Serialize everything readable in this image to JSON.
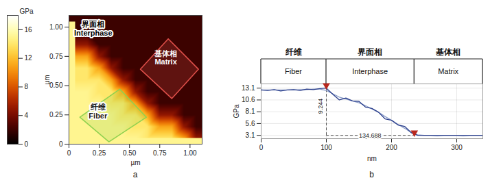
{
  "chart_data": [
    {
      "type": "heatmap",
      "panel": "a",
      "x": [
        0.05,
        0.15,
        0.25,
        0.35,
        0.45,
        0.55,
        0.65,
        0.75,
        0.85,
        0.95,
        1.05
      ],
      "y": [
        0.05,
        0.15,
        0.25,
        0.35,
        0.45,
        0.55,
        0.65,
        0.75,
        0.85,
        0.95,
        1.05
      ],
      "z": [
        [
          15,
          15,
          15,
          15,
          15,
          15,
          14,
          14,
          14,
          11,
          5
        ],
        [
          15,
          15,
          15,
          15,
          15,
          14,
          14,
          11,
          11,
          5,
          2
        ],
        [
          15,
          15,
          15,
          15,
          14,
          14,
          11,
          5,
          5,
          2,
          2
        ],
        [
          15,
          15,
          15,
          14,
          14,
          11,
          5,
          2,
          2,
          2,
          2
        ],
        [
          15,
          15,
          14,
          14,
          11,
          5,
          2,
          2,
          2,
          2,
          2
        ],
        [
          14,
          14,
          14,
          11,
          5,
          2,
          2,
          2,
          2,
          2,
          2
        ],
        [
          14,
          14,
          11,
          5,
          2,
          2,
          2,
          2,
          2,
          2,
          2
        ],
        [
          11,
          11,
          5,
          2,
          2,
          2,
          2,
          2,
          2,
          2,
          2
        ],
        [
          5,
          5,
          2,
          2,
          2,
          2,
          2,
          2,
          2,
          2,
          2
        ],
        [
          2,
          2,
          2,
          2,
          2,
          2,
          2,
          2,
          2,
          2,
          2
        ],
        [
          2,
          2,
          2,
          2,
          2,
          2,
          2,
          2,
          2,
          2,
          2
        ]
      ],
      "xlim": [
        0,
        1.1
      ],
      "ylim": [
        0,
        1.1
      ],
      "xticks": [
        0,
        0.25,
        {
          "value": 0.5,
          "label": "0.50"
        },
        0.75,
        {
          "value": 1,
          "label": "1.00"
        }
      ],
      "yticks": [
        0,
        0.25,
        {
          "value": 0.5,
          "label": "0.50"
        },
        0.75,
        {
          "value": 1,
          "label": "1.00"
        }
      ],
      "xlabel": "µm",
      "ylabel": "µm",
      "colorbar": {
        "range": [
          0,
          18
        ],
        "ticks": [
          0,
          4,
          8,
          12,
          16
        ],
        "label": "GPa"
      },
      "regions": [
        {
          "color": "#e0504a",
          "polygon": [
            [
              0.82,
              0.9
            ],
            [
              1.07,
              0.64
            ],
            [
              0.85,
              0.39
            ],
            [
              0.59,
              0.64
            ]
          ]
        },
        {
          "color": "#8fd14f",
          "polygon": [
            [
              0.42,
              0.47
            ],
            [
              0.64,
              0.23
            ],
            [
              0.33,
              0.02
            ],
            [
              0.09,
              0.23
            ]
          ]
        }
      ],
      "annotations": [
        {
          "text": [
            "界面相",
            "Interphase"
          ],
          "x": 0.2,
          "y": 0.99,
          "color": "#000000"
        },
        {
          "text": [
            "基体相",
            "Matrix"
          ],
          "x": 0.8,
          "y": 0.74,
          "color": "#ffffff"
        },
        {
          "text": [
            "纤维",
            "Fiber"
          ],
          "x": 0.24,
          "y": 0.28,
          "color": "#1a1a1a"
        }
      ]
    },
    {
      "type": "line",
      "panel": "b",
      "x": [
        0,
        10,
        20,
        30,
        40,
        50,
        60,
        70,
        80,
        90,
        100,
        110,
        120,
        130,
        140,
        150,
        160,
        170,
        180,
        190,
        200,
        210,
        220,
        230,
        240,
        250,
        260,
        270,
        280,
        290,
        300,
        310,
        320,
        330,
        340
      ],
      "series": [
        {
          "color": "#8a9cc8",
          "values": [
            12.7,
            12.7,
            12.7,
            12.7,
            12.7,
            12.7,
            12.8,
            12.8,
            12.9,
            12.9,
            12.6,
            11.9,
            11.2,
            10.8,
            10.4,
            10.0,
            9.4,
            8.7,
            8.0,
            7.1,
            6.3,
            5.4,
            4.6,
            3.7,
            3.2,
            3.1,
            3.1,
            3.1,
            3.1,
            3.1,
            3.1,
            3.1,
            3.1,
            3.1,
            3.1
          ]
        },
        {
          "color": "#2b3f8c",
          "values": [
            12.7,
            12.6,
            12.8,
            12.5,
            12.7,
            12.8,
            12.6,
            12.9,
            12.8,
            13.0,
            13.1,
            11.8,
            10.6,
            11.0,
            10.4,
            10.3,
            9.1,
            8.8,
            8.0,
            6.6,
            6.3,
            5.3,
            5.0,
            3.7,
            3.1,
            3.1,
            3.1,
            3.0,
            3.1,
            3.1,
            3.1,
            3.0,
            3.1,
            3.1,
            3.1
          ]
        }
      ],
      "xlim": [
        0,
        340
      ],
      "ylim": [
        2.4,
        14.0
      ],
      "xticks": [
        0,
        100,
        200,
        300
      ],
      "yticks": [
        3.1,
        5.6,
        8.1,
        10.6,
        13.1
      ],
      "xlabel": "nm",
      "ylabel": "GPa",
      "grid": true,
      "regions": [
        {
          "label": [
            "纤维",
            "Fiber"
          ],
          "from": 0,
          "to": 100
        },
        {
          "label": [
            "界面相",
            "Interphase"
          ],
          "from": 100,
          "to": 235
        },
        {
          "label": [
            "基体相",
            "Matrix"
          ],
          "from": 235,
          "to": 340
        }
      ],
      "boundaries": [
        {
          "x": 100,
          "y": 13.1
        },
        {
          "x": 235,
          "y": 3.1
        }
      ],
      "annotations": [
        {
          "text": "9.244",
          "x": 100,
          "y": 9.3
        },
        {
          "text": "134.688",
          "x": 167,
          "y": 3.1
        }
      ]
    }
  ]
}
